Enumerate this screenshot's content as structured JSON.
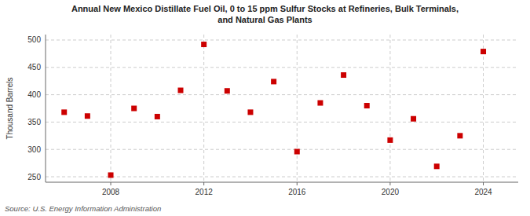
{
  "chart_data": {
    "type": "scatter",
    "title": "Annual New Mexico Distillate Fuel Oil, 0 to 15 ppm Sulfur Stocks at Refineries, Bulk Terminals,\nand Natural Gas Plants",
    "ylabel": "Thousand Barrels",
    "source": "Source: U.S. Energy Information Administration",
    "x": [
      2006,
      2007,
      2008,
      2009,
      2010,
      2011,
      2012,
      2013,
      2014,
      2015,
      2016,
      2017,
      2018,
      2019,
      2020,
      2021,
      2022,
      2023,
      2024
    ],
    "values": [
      368,
      361,
      253,
      375,
      360,
      408,
      492,
      407,
      368,
      424,
      296,
      385,
      436,
      380,
      317,
      356,
      269,
      325,
      479
    ],
    "color": "#cc0000",
    "marker": "square",
    "xlim": [
      2005.2,
      2025.5
    ],
    "xticks": [
      2008,
      2012,
      2016,
      2020,
      2024
    ],
    "ylim": [
      240,
      510
    ],
    "yticks": [
      250,
      300,
      350,
      400,
      450,
      500
    ],
    "grid": true
  }
}
